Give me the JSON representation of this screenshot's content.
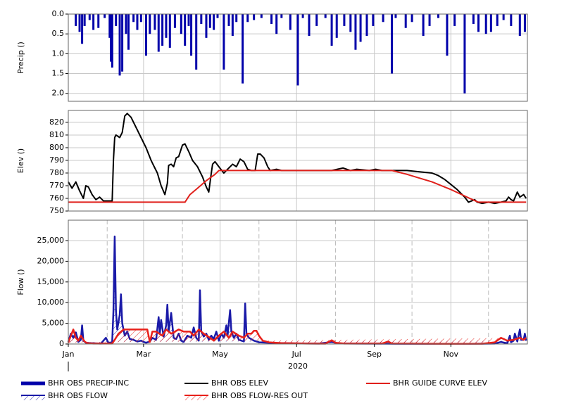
{
  "chart_data": [
    {
      "type": "bar",
      "ylabel": "Precip ()",
      "xlim": [
        0,
        366
      ],
      "ylim": [
        0,
        2.2
      ],
      "y_inverted": true,
      "grid": true,
      "yticks": [
        {
          "value": 0,
          "label": "0.0"
        },
        {
          "value": 0.5,
          "label": "0.5"
        },
        {
          "value": 1,
          "label": "1.0"
        },
        {
          "value": 1.5,
          "label": "1.5"
        },
        {
          "value": 2,
          "label": "2.0"
        }
      ],
      "series": [
        {
          "name": "BHR OBS PRECIP-INC",
          "color": "#0000aa",
          "x": [
            6,
            9,
            11,
            13,
            17,
            20,
            24,
            29,
            33,
            34,
            35,
            38,
            41,
            43,
            46,
            48,
            52,
            55,
            58,
            62,
            65,
            69,
            72,
            75,
            78,
            81,
            85,
            90,
            93,
            96,
            98,
            102,
            106,
            110,
            113,
            116,
            119,
            124,
            128,
            131,
            134,
            139,
            143,
            148,
            154,
            162,
            166,
            170,
            177,
            183,
            187,
            192,
            198,
            205,
            210,
            214,
            220,
            225,
            229,
            233,
            238,
            243,
            251,
            258,
            261,
            269,
            274,
            283,
            288,
            295,
            302,
            308,
            316,
            323,
            327,
            333,
            337,
            342,
            347,
            353,
            360,
            364
          ],
          "values": [
            0.3,
            0.45,
            0.75,
            0.3,
            0.15,
            0.4,
            0.35,
            0.1,
            0.6,
            1.2,
            1.35,
            0.3,
            1.55,
            1.45,
            0.5,
            0.9,
            0.2,
            0.4,
            0.2,
            1.05,
            0.5,
            0.4,
            0.95,
            0.8,
            0.6,
            0.85,
            0.35,
            0.5,
            0.8,
            0.3,
            1.05,
            1.4,
            0.25,
            0.6,
            0.35,
            0.4,
            0.1,
            1.4,
            0.3,
            0.55,
            0.2,
            1.75,
            0.2,
            0.15,
            0.1,
            0.25,
            0.5,
            0.1,
            0.4,
            1.8,
            0.1,
            0.55,
            0.3,
            0.1,
            0.8,
            0.6,
            0.3,
            0.45,
            0.9,
            0.7,
            0.55,
            0.3,
            0.2,
            1.5,
            0.1,
            0.35,
            0.2,
            0.55,
            0.3,
            0.1,
            1.05,
            0.3,
            2.0,
            0.25,
            0.45,
            0.5,
            0.45,
            0.3,
            0.15,
            0.3,
            0.55,
            0.45
          ]
        }
      ]
    },
    {
      "type": "line",
      "ylabel": "Elev ()",
      "xlim": [
        0,
        366
      ],
      "ylim": [
        750,
        829.4
      ],
      "grid": true,
      "yticks": [
        750,
        760,
        770,
        780,
        790,
        800,
        810,
        820
      ],
      "series": [
        {
          "name": "BHR OBS ELEV",
          "color": "#000000",
          "x": [
            0,
            3,
            6,
            9,
            12,
            14,
            16,
            19,
            22,
            25,
            28,
            32,
            35,
            36,
            37,
            38,
            41,
            43,
            45,
            47,
            50,
            54,
            58,
            62,
            66,
            68,
            71,
            74,
            77,
            79,
            80,
            82,
            84,
            86,
            88,
            91,
            93,
            96,
            99,
            103,
            107,
            110,
            112,
            114,
            115,
            117,
            120,
            124,
            128,
            131,
            134,
            137,
            140,
            143,
            146,
            149,
            151,
            153,
            156,
            159,
            161,
            166,
            170,
            190,
            210,
            219,
            225,
            230,
            240,
            245,
            250,
            270,
            280,
            290,
            295,
            300,
            305,
            310,
            313,
            316,
            319,
            324,
            326,
            330,
            335,
            340,
            345,
            349,
            351,
            353,
            355,
            358,
            360,
            363,
            365
          ],
          "values": [
            773,
            768,
            773,
            766,
            760,
            770,
            769,
            763,
            759,
            761,
            758,
            758,
            758,
            790,
            808,
            810,
            808,
            812,
            825,
            827,
            824,
            816,
            808,
            800,
            790,
            786,
            780,
            770,
            763,
            772,
            786,
            787,
            785,
            792,
            793,
            802,
            803,
            797,
            790,
            785,
            777,
            769,
            765,
            780,
            787,
            789,
            785,
            780,
            784,
            787,
            785,
            791,
            789,
            783,
            782,
            782,
            795,
            795,
            792,
            785,
            782,
            783,
            782,
            782,
            782,
            784,
            782,
            783,
            782,
            783,
            782,
            782,
            781,
            780,
            778,
            775,
            771,
            767,
            764,
            761,
            757,
            759,
            757,
            756,
            757,
            756,
            757,
            758,
            761,
            759,
            758,
            765,
            761,
            763,
            760
          ]
        },
        {
          "name": "BHR GUIDE CURVE ELEV",
          "color": "#e0201b",
          "x": [
            0,
            93,
            97,
            103,
            110,
            117,
            120,
            258,
            270,
            290,
            305,
            320,
            327,
            365
          ],
          "values": [
            757,
            757,
            763,
            768,
            774,
            779,
            782,
            782,
            779,
            773,
            767,
            760,
            757,
            757
          ]
        }
      ]
    },
    {
      "type": "line",
      "ylabel": "Flow ()",
      "xlabel": "2020",
      "xlim": [
        0,
        366
      ],
      "ylim": [
        0,
        29932
      ],
      "grid": true,
      "yticks": [
        0,
        {
          "value": 5000,
          "label": "5,000"
        },
        {
          "value": 10000,
          "label": "10,000"
        },
        {
          "value": 15000,
          "label": "15,000"
        },
        {
          "value": 20000,
          "label": "20,000"
        },
        {
          "value": 25000,
          "label": "25,000"
        }
      ],
      "xticks": [
        {
          "value": 0,
          "label": "Jan"
        },
        {
          "value": 60,
          "label": "Mar"
        },
        {
          "value": 121,
          "label": "May"
        },
        {
          "value": 182,
          "label": "Jul"
        },
        {
          "value": 244,
          "label": "Sep"
        },
        {
          "value": 305,
          "label": "Nov"
        }
      ],
      "x_minor_ticks": [
        31,
        91,
        152,
        213,
        274,
        335
      ],
      "series": [
        {
          "name": "BHR OBS FLOW",
          "color": "#1a1aa8",
          "hatch": true,
          "x": [
            0,
            2,
            4,
            6,
            8,
            10,
            11,
            12,
            14,
            18,
            22,
            26,
            30,
            32,
            35,
            36,
            37,
            38,
            39,
            41,
            42,
            43,
            45,
            47,
            49,
            52,
            55,
            58,
            60,
            62,
            65,
            67,
            70,
            72,
            73,
            74,
            76,
            78,
            79,
            80,
            82,
            84,
            86,
            88,
            90,
            92,
            95,
            98,
            100,
            102,
            104,
            105,
            106,
            108,
            110,
            112,
            114,
            116,
            118,
            120,
            122,
            124,
            126,
            127,
            129,
            130,
            132,
            134,
            136,
            140,
            141,
            142,
            144,
            148,
            152,
            160,
            170,
            180,
            200,
            210,
            215,
            230,
            250,
            260,
            290,
            320,
            340,
            345,
            350,
            352,
            353,
            355,
            356,
            358,
            360,
            361,
            363,
            364,
            365
          ],
          "values": [
            500,
            2500,
            1500,
            2800,
            500,
            1000,
            4500,
            800,
            300,
            200,
            150,
            100,
            1500,
            300,
            400,
            8000,
            26000,
            8000,
            3500,
            7000,
            12000,
            5000,
            2000,
            3000,
            1200,
            1000,
            600,
            800,
            500,
            300,
            600,
            1500,
            1000,
            6500,
            2500,
            5800,
            1800,
            4500,
            9500,
            3000,
            7500,
            1500,
            1200,
            2500,
            800,
            500,
            2000,
            1500,
            4000,
            1500,
            800,
            13000,
            3000,
            1800,
            2500,
            1000,
            2000,
            1200,
            3000,
            800,
            2500,
            1500,
            4500,
            2000,
            8200,
            3000,
            1500,
            2500,
            1000,
            600,
            9800,
            2500,
            1500,
            800,
            400,
            300,
            200,
            150,
            100,
            500,
            150,
            100,
            80,
            60,
            50,
            40,
            100,
            500,
            150,
            2000,
            400,
            800,
            2500,
            600,
            3500,
            1000,
            1000,
            2500,
            800
          ]
        },
        {
          "name": "BHR OBS FLOW-RES OUT",
          "color": "#e8201a",
          "hatch": true,
          "x": [
            0,
            2,
            4,
            6,
            8,
            10,
            13,
            15,
            20,
            35,
            37,
            40,
            44,
            48,
            60,
            63,
            65,
            67,
            70,
            75,
            78,
            82,
            88,
            92,
            97,
            100,
            104,
            108,
            113,
            116,
            120,
            124,
            128,
            131,
            136,
            140,
            143,
            146,
            148,
            150,
            152,
            155,
            160,
            170,
            190,
            205,
            210,
            213,
            220,
            250,
            255,
            258,
            300,
            330,
            340,
            345,
            350,
            355,
            360,
            363,
            365
          ],
          "values": [
            300,
            2000,
            3500,
            1500,
            800,
            2000,
            600,
            200,
            100,
            100,
            1000,
            2500,
            3500,
            3500,
            3500,
            3500,
            500,
            3000,
            3000,
            2000,
            3500,
            2500,
            3500,
            3000,
            3000,
            2000,
            3500,
            2500,
            1500,
            800,
            2000,
            3000,
            1500,
            3000,
            2000,
            1500,
            2500,
            2500,
            3200,
            3200,
            2000,
            800,
            400,
            200,
            100,
            80,
            900,
            300,
            100,
            100,
            600,
            100,
            50,
            60,
            400,
            1500,
            800,
            1000,
            1500,
            1000,
            1500
          ]
        }
      ]
    }
  ]
}
